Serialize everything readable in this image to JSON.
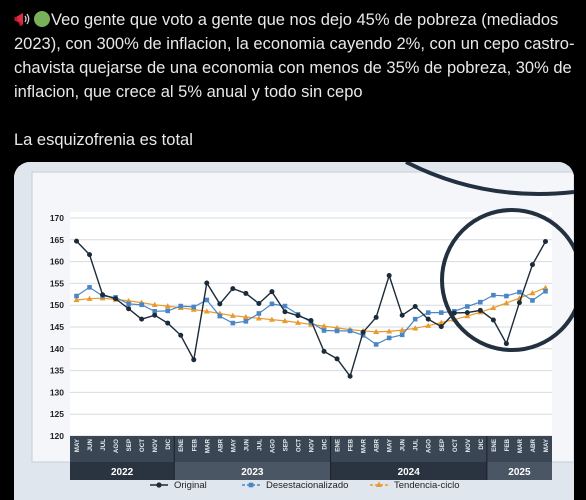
{
  "post": {
    "icons": [
      "megaphone-icon",
      "green-circle-icon"
    ],
    "paragraph1": "Veo gente que voto a gente que nos dejo 45% de pobreza (mediados 2023), con 300% de inflacion, la economia cayendo 2%, con un cepo castro-chavista quejarse de una economia con menos de 35% de pobreza, 30% de inflacion, que crece al 5% anual y todo sin cepo",
    "paragraph2": "La esquizofrenia es total"
  },
  "chart_data": {
    "type": "line",
    "ylim": [
      120,
      170
    ],
    "y_ticks": [
      "170",
      "165",
      "160",
      "155",
      "150",
      "145",
      "140",
      "135",
      "130",
      "125",
      "120"
    ],
    "x": [
      "MAY",
      "JUN",
      "JUL",
      "AGO",
      "SEP",
      "OCT",
      "NOV",
      "DIC",
      "ENE",
      "FEB",
      "MAR",
      "ABR",
      "MAY",
      "JUN",
      "JUL",
      "AGO",
      "SEP",
      "OCT",
      "NOV",
      "DIC",
      "ENE",
      "FEB",
      "MAR",
      "ABR",
      "MAY",
      "JUN",
      "JUL",
      "AGO",
      "SEP",
      "OCT",
      "NOV",
      "DIC",
      "ENE",
      "FEB",
      "MAR",
      "ABR",
      "MAY"
    ],
    "years": [
      {
        "label": "2022",
        "start": 0,
        "end": 7
      },
      {
        "label": "2023",
        "start": 8,
        "end": 19
      },
      {
        "label": "2024",
        "start": 20,
        "end": 31
      },
      {
        "label": "2025",
        "start": 32,
        "end": 36
      }
    ],
    "series": [
      {
        "name": "Original",
        "color": "#1c2b3a",
        "marker": "circle",
        "values": [
          164.7,
          161.6,
          152.4,
          151.5,
          149.2,
          146.8,
          147.7,
          145.9,
          143.1,
          137.5,
          155.1,
          150.3,
          153.8,
          152.7,
          150.4,
          153.1,
          148.5,
          147.6,
          146.5,
          139.4,
          137.7,
          133.7,
          143.8,
          147.2,
          156.8,
          147.7,
          149.7,
          146.8,
          145.1,
          148.2,
          148.3,
          148.8,
          146.6,
          141.2,
          150.6,
          159.3,
          164.6
        ]
      },
      {
        "name": "Desestacionalizado",
        "color": "#4a86c5",
        "marker": "square",
        "values": [
          152.1,
          154.1,
          152.1,
          151.8,
          150.3,
          150.1,
          148.6,
          148.7,
          149.8,
          149.6,
          151.2,
          147.5,
          145.9,
          146.3,
          148.1,
          150.3,
          149.8,
          147.9,
          146.1,
          144.2,
          144.1,
          144.1,
          143.1,
          141.0,
          142.5,
          143.2,
          146.8,
          148.3,
          148.3,
          148.6,
          149.7,
          150.7,
          152.3,
          152.1,
          153.0,
          151.1,
          153.2
        ]
      },
      {
        "name": "Tendencia-ciclo",
        "color": "#e89a2c",
        "marker": "triangle",
        "values": [
          151.2,
          151.5,
          151.6,
          151.3,
          151.0,
          150.6,
          150.1,
          149.8,
          149.4,
          149.0,
          148.6,
          148.1,
          147.6,
          147.3,
          147.0,
          146.7,
          146.4,
          146.0,
          145.6,
          145.2,
          144.8,
          144.4,
          144.1,
          143.9,
          144.0,
          144.3,
          144.7,
          145.3,
          146.0,
          146.7,
          147.5,
          148.4,
          149.4,
          150.5,
          151.6,
          152.8,
          154.0
        ]
      }
    ]
  }
}
